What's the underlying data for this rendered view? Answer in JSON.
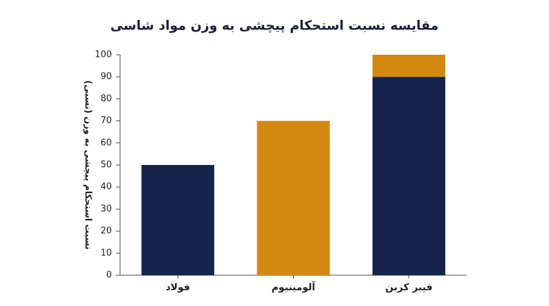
{
  "chart_data": {
    "type": "bar",
    "stacked": true,
    "title": "مقایسه نسبت استحکام پیچشی به وزن مواد شاسی",
    "ylabel": "نسبت استحکام پیچشی به وزن (نسبی)",
    "categories": [
      "فولاد",
      "آلومینیوم",
      "فیبر کربن"
    ],
    "series": [
      {
        "color": "#13234b",
        "values": [
          50,
          null,
          90
        ]
      },
      {
        "color": "#d4880f",
        "values": [
          null,
          70,
          10
        ]
      }
    ],
    "ylim": [
      0,
      100
    ],
    "yticks": [
      0,
      10,
      20,
      30,
      40,
      50,
      60,
      70,
      80,
      90,
      100
    ],
    "grid": false
  }
}
